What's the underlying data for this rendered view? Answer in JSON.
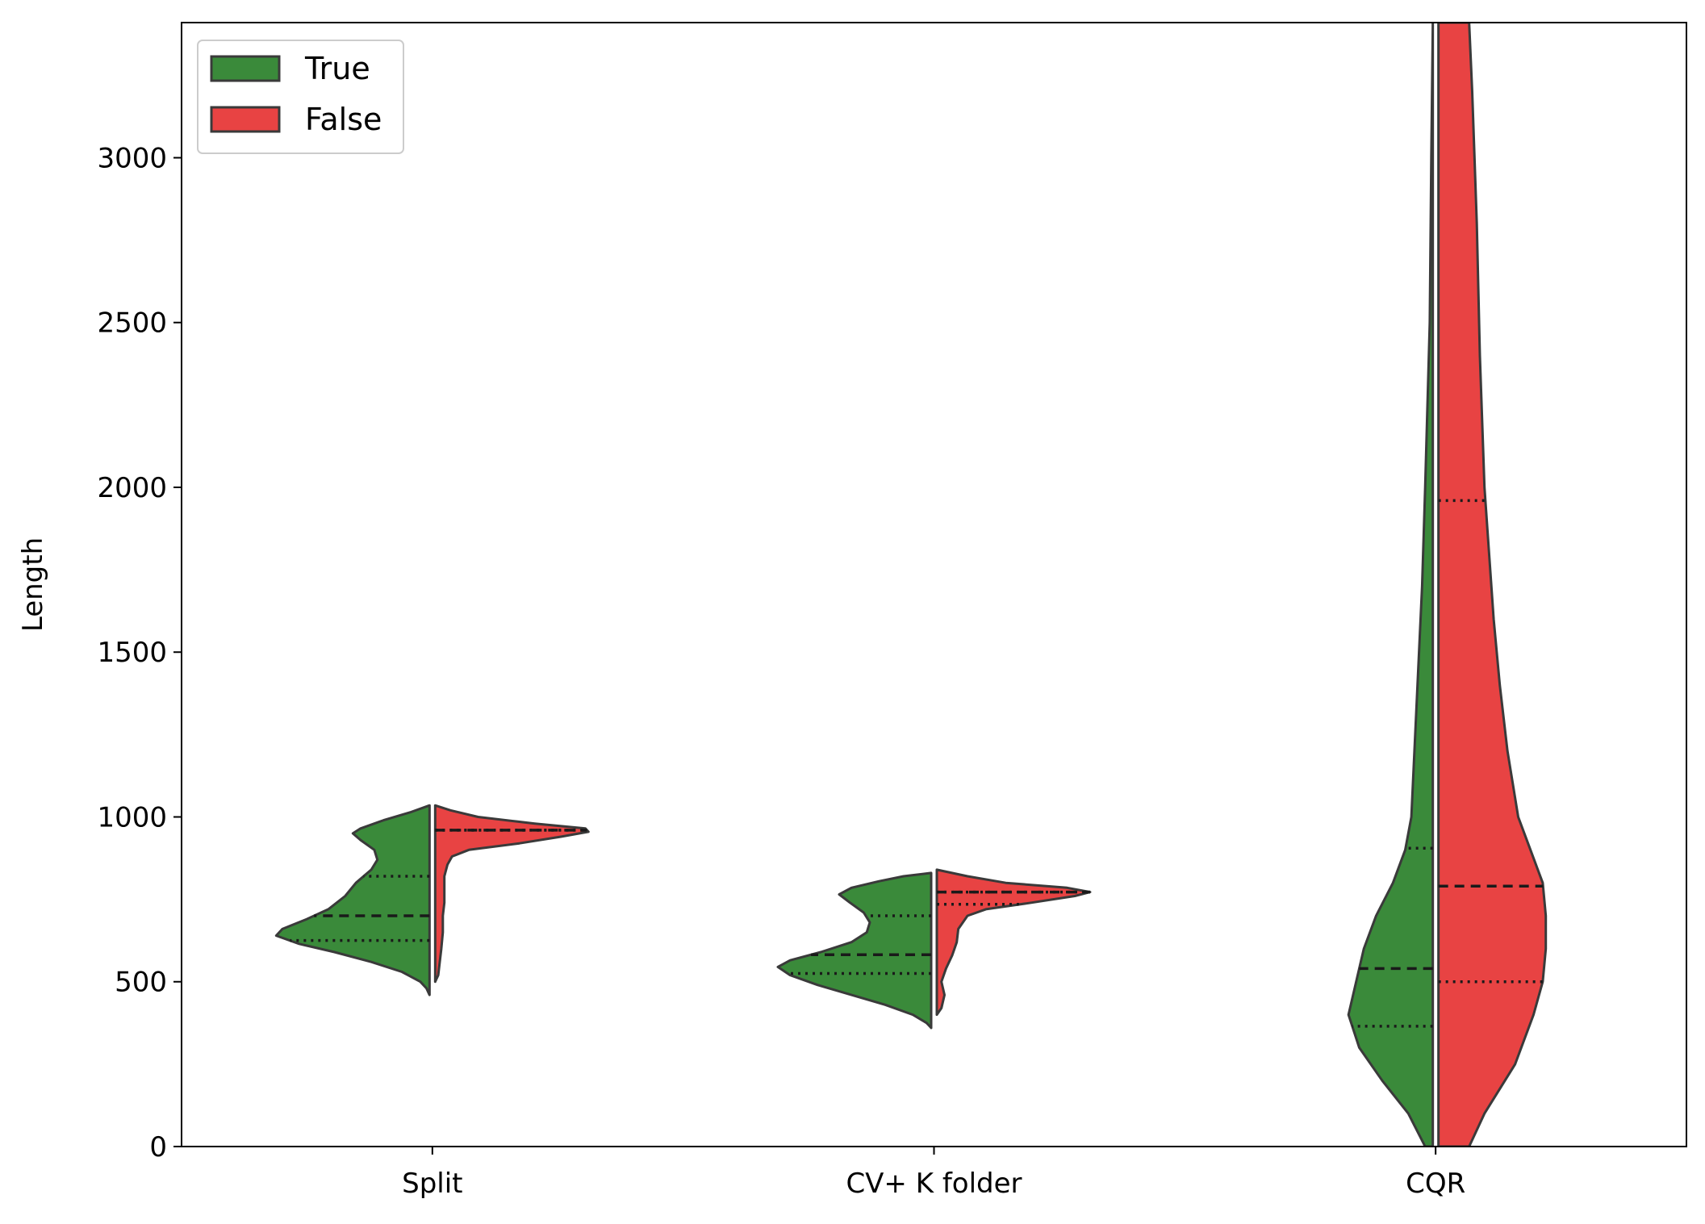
{
  "chart_data": {
    "type": "violin",
    "split": true,
    "title": "",
    "xlabel": "",
    "ylabel": "Length",
    "ylim": [
      0,
      3410
    ],
    "yticks": [
      0,
      500,
      1000,
      1500,
      2000,
      2500,
      3000
    ],
    "categories": [
      "Split",
      "CV+ K folder",
      "CQR"
    ],
    "inner": "quartile",
    "grid": false,
    "legend": {
      "placement": "top-left",
      "entries": [
        "True",
        "False"
      ]
    },
    "series": [
      {
        "name": "True",
        "color": "#3a8a3a",
        "side": "left",
        "violins": [
          {
            "category": "Split",
            "range": [
              460,
              1035
            ],
            "q1": 625,
            "median": 700,
            "q3": 820,
            "profile": [
              [
                460,
                0.0
              ],
              [
                480,
                0.02
              ],
              [
                500,
                0.06
              ],
              [
                530,
                0.18
              ],
              [
                560,
                0.38
              ],
              [
                590,
                0.62
              ],
              [
                615,
                0.85
              ],
              [
                640,
                1.0
              ],
              [
                660,
                0.96
              ],
              [
                690,
                0.8
              ],
              [
                720,
                0.66
              ],
              [
                760,
                0.55
              ],
              [
                800,
                0.48
              ],
              [
                840,
                0.38
              ],
              [
                870,
                0.34
              ],
              [
                900,
                0.36
              ],
              [
                930,
                0.45
              ],
              [
                950,
                0.5
              ],
              [
                965,
                0.45
              ],
              [
                990,
                0.3
              ],
              [
                1015,
                0.12
              ],
              [
                1035,
                0.0
              ]
            ]
          },
          {
            "category": "CV+ K folder",
            "range": [
              360,
              830
            ],
            "q1": 525,
            "median": 582,
            "q3": 700,
            "profile": [
              [
                360,
                0.0
              ],
              [
                375,
                0.03
              ],
              [
                400,
                0.12
              ],
              [
                430,
                0.3
              ],
              [
                460,
                0.52
              ],
              [
                490,
                0.74
              ],
              [
                520,
                0.92
              ],
              [
                545,
                1.0
              ],
              [
                565,
                0.92
              ],
              [
                590,
                0.72
              ],
              [
                620,
                0.52
              ],
              [
                650,
                0.42
              ],
              [
                680,
                0.4
              ],
              [
                710,
                0.44
              ],
              [
                740,
                0.53
              ],
              [
                765,
                0.6
              ],
              [
                785,
                0.52
              ],
              [
                805,
                0.34
              ],
              [
                820,
                0.18
              ],
              [
                830,
                0.0
              ]
            ]
          },
          {
            "category": "CQR",
            "range": [
              0,
              3410
            ],
            "q1": 365,
            "median": 540,
            "q3": 905,
            "profile": [
              [
                0,
                0.05
              ],
              [
                100,
                0.16
              ],
              [
                200,
                0.33
              ],
              [
                300,
                0.48
              ],
              [
                400,
                0.55
              ],
              [
                500,
                0.5
              ],
              [
                600,
                0.45
              ],
              [
                700,
                0.37
              ],
              [
                800,
                0.26
              ],
              [
                900,
                0.18
              ],
              [
                1000,
                0.14
              ],
              [
                1200,
                0.12
              ],
              [
                1400,
                0.1
              ],
              [
                1700,
                0.07
              ],
              [
                2000,
                0.05
              ],
              [
                2500,
                0.02
              ],
              [
                3000,
                0.01
              ],
              [
                3410,
                0.0
              ]
            ]
          }
        ]
      },
      {
        "name": "False",
        "color": "#e84343",
        "side": "right",
        "violins": [
          {
            "category": "Split",
            "range": [
              500,
              1035
            ],
            "q1": 960,
            "median": 960,
            "q3": 960,
            "profile": [
              [
                500,
                0.0
              ],
              [
                520,
                0.02
              ],
              [
                560,
                0.03
              ],
              [
                600,
                0.04
              ],
              [
                650,
                0.05
              ],
              [
                700,
                0.05
              ],
              [
                740,
                0.06
              ],
              [
                780,
                0.06
              ],
              [
                820,
                0.06
              ],
              [
                855,
                0.08
              ],
              [
                880,
                0.11
              ],
              [
                900,
                0.22
              ],
              [
                920,
                0.55
              ],
              [
                940,
                0.82
              ],
              [
                955,
                1.0
              ],
              [
                965,
                0.98
              ],
              [
                980,
                0.65
              ],
              [
                1000,
                0.28
              ],
              [
                1020,
                0.1
              ],
              [
                1035,
                0.0
              ]
            ]
          },
          {
            "category": "CV+ K folder",
            "range": [
              400,
              840
            ],
            "q1": 735,
            "median": 772,
            "q3": 772,
            "profile": [
              [
                400,
                0.0
              ],
              [
                420,
                0.03
              ],
              [
                460,
                0.05
              ],
              [
                500,
                0.03
              ],
              [
                540,
                0.06
              ],
              [
                580,
                0.1
              ],
              [
                620,
                0.13
              ],
              [
                660,
                0.14
              ],
              [
                700,
                0.2
              ],
              [
                720,
                0.32
              ],
              [
                740,
                0.62
              ],
              [
                760,
                0.9
              ],
              [
                772,
                1.0
              ],
              [
                785,
                0.85
              ],
              [
                800,
                0.45
              ],
              [
                820,
                0.2
              ],
              [
                840,
                0.0
              ]
            ]
          },
          {
            "category": "CQR",
            "range": [
              0,
              3410
            ],
            "q1": 500,
            "median": 790,
            "q3": 1960,
            "profile": [
              [
                0,
                0.2
              ],
              [
                100,
                0.3
              ],
              [
                250,
                0.5
              ],
              [
                400,
                0.62
              ],
              [
                500,
                0.68
              ],
              [
                600,
                0.7
              ],
              [
                700,
                0.7
              ],
              [
                800,
                0.68
              ],
              [
                900,
                0.6
              ],
              [
                1000,
                0.52
              ],
              [
                1200,
                0.45
              ],
              [
                1400,
                0.4
              ],
              [
                1600,
                0.36
              ],
              [
                2000,
                0.3
              ],
              [
                2400,
                0.27
              ],
              [
                2800,
                0.25
              ],
              [
                3200,
                0.22
              ],
              [
                3410,
                0.2
              ]
            ]
          }
        ]
      }
    ]
  }
}
